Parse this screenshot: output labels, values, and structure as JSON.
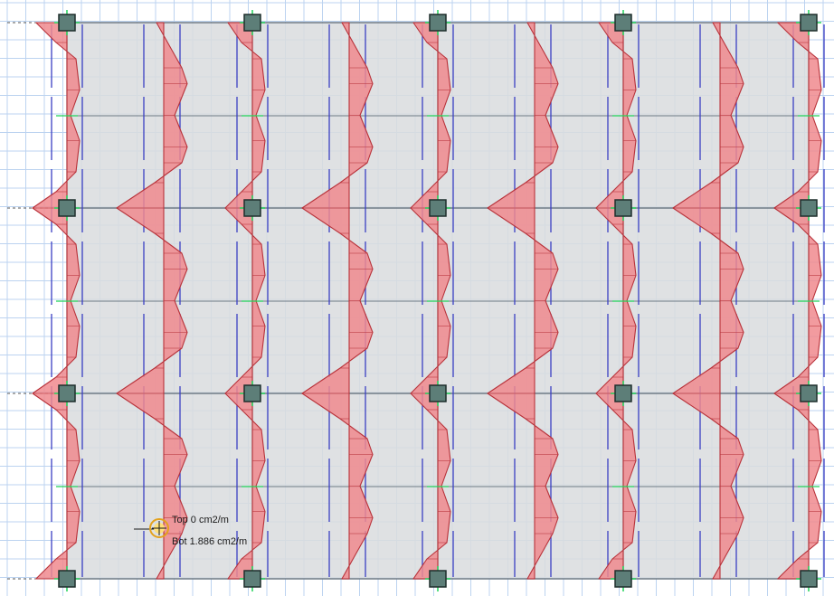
{
  "colors": {
    "background": "#ffffff",
    "grid_line": "#bcd3f0",
    "slab_fill": "#d9dcde",
    "beam_line": "#6e7a86",
    "strip_line": "#3b3fc4",
    "diagram_fill": "#f08a8e",
    "diagram_stroke": "#b8323a",
    "column_fill": "#5d7e78",
    "column_stroke": "#1f2f2c",
    "axis_green": "#22d35a",
    "cursor_ring": "#e4a21c",
    "cursor_fill": "#ffe07a"
  },
  "icons": {
    "column": "column-square-icon",
    "cursor": "snap-cursor-icon"
  },
  "tooltip": {
    "top_label": "Top 0 cm2/m",
    "bottom_label": "Bot 1.886 cm2/m"
  }
}
